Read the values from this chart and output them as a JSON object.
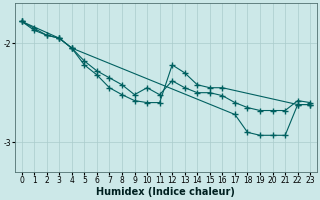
{
  "background_color": "#cce8e8",
  "grid_color": "#aacccc",
  "line_color": "#006060",
  "marker": "+",
  "markersize": 4,
  "linewidth": 0.8,
  "xlabel": "Humidex (Indice chaleur)",
  "xlabel_fontsize": 7,
  "tick_fontsize": 5.5,
  "xlim": [
    -0.5,
    23.5
  ],
  "ylim": [
    -3.3,
    -1.6
  ],
  "yticks": [
    -3.0,
    -2.0
  ],
  "xticks": [
    0,
    1,
    2,
    3,
    4,
    5,
    6,
    7,
    8,
    9,
    10,
    11,
    12,
    13,
    14,
    15,
    16,
    17,
    18,
    19,
    20,
    21,
    22,
    23
  ],
  "series": [
    {
      "x": [
        0,
        1,
        2,
        3,
        4,
        5,
        6,
        7,
        8,
        9,
        10,
        11,
        12,
        13,
        14,
        15,
        16,
        17,
        18,
        19,
        20,
        21,
        22,
        23
      ],
      "y": [
        -1.78,
        -1.87,
        -1.92,
        -1.95,
        -2.05,
        -2.18,
        -2.28,
        -2.35,
        -2.42,
        -2.52,
        -2.45,
        -2.52,
        -2.38,
        -2.45,
        -2.5,
        -2.5,
        -2.53,
        -2.6,
        -2.65,
        -2.68,
        -2.68,
        -2.68,
        -2.58,
        -2.6
      ]
    },
    {
      "x": [
        0,
        1,
        2,
        3,
        4,
        5,
        6,
        7,
        8,
        9,
        10,
        11,
        12,
        13,
        14,
        15,
        16,
        22,
        23
      ],
      "y": [
        -1.78,
        -1.85,
        -1.92,
        -1.95,
        -2.05,
        -2.22,
        -2.32,
        -2.45,
        -2.52,
        -2.58,
        -2.6,
        -2.6,
        -2.22,
        -2.3,
        -2.42,
        -2.45,
        -2.45,
        -2.62,
        -2.62
      ]
    },
    {
      "x": [
        0,
        3,
        4,
        17,
        18,
        19,
        20,
        21,
        22,
        23
      ],
      "y": [
        -1.78,
        -1.95,
        -2.05,
        -2.72,
        -2.9,
        -2.93,
        -2.93,
        -2.93,
        -2.62,
        -2.62
      ]
    }
  ]
}
